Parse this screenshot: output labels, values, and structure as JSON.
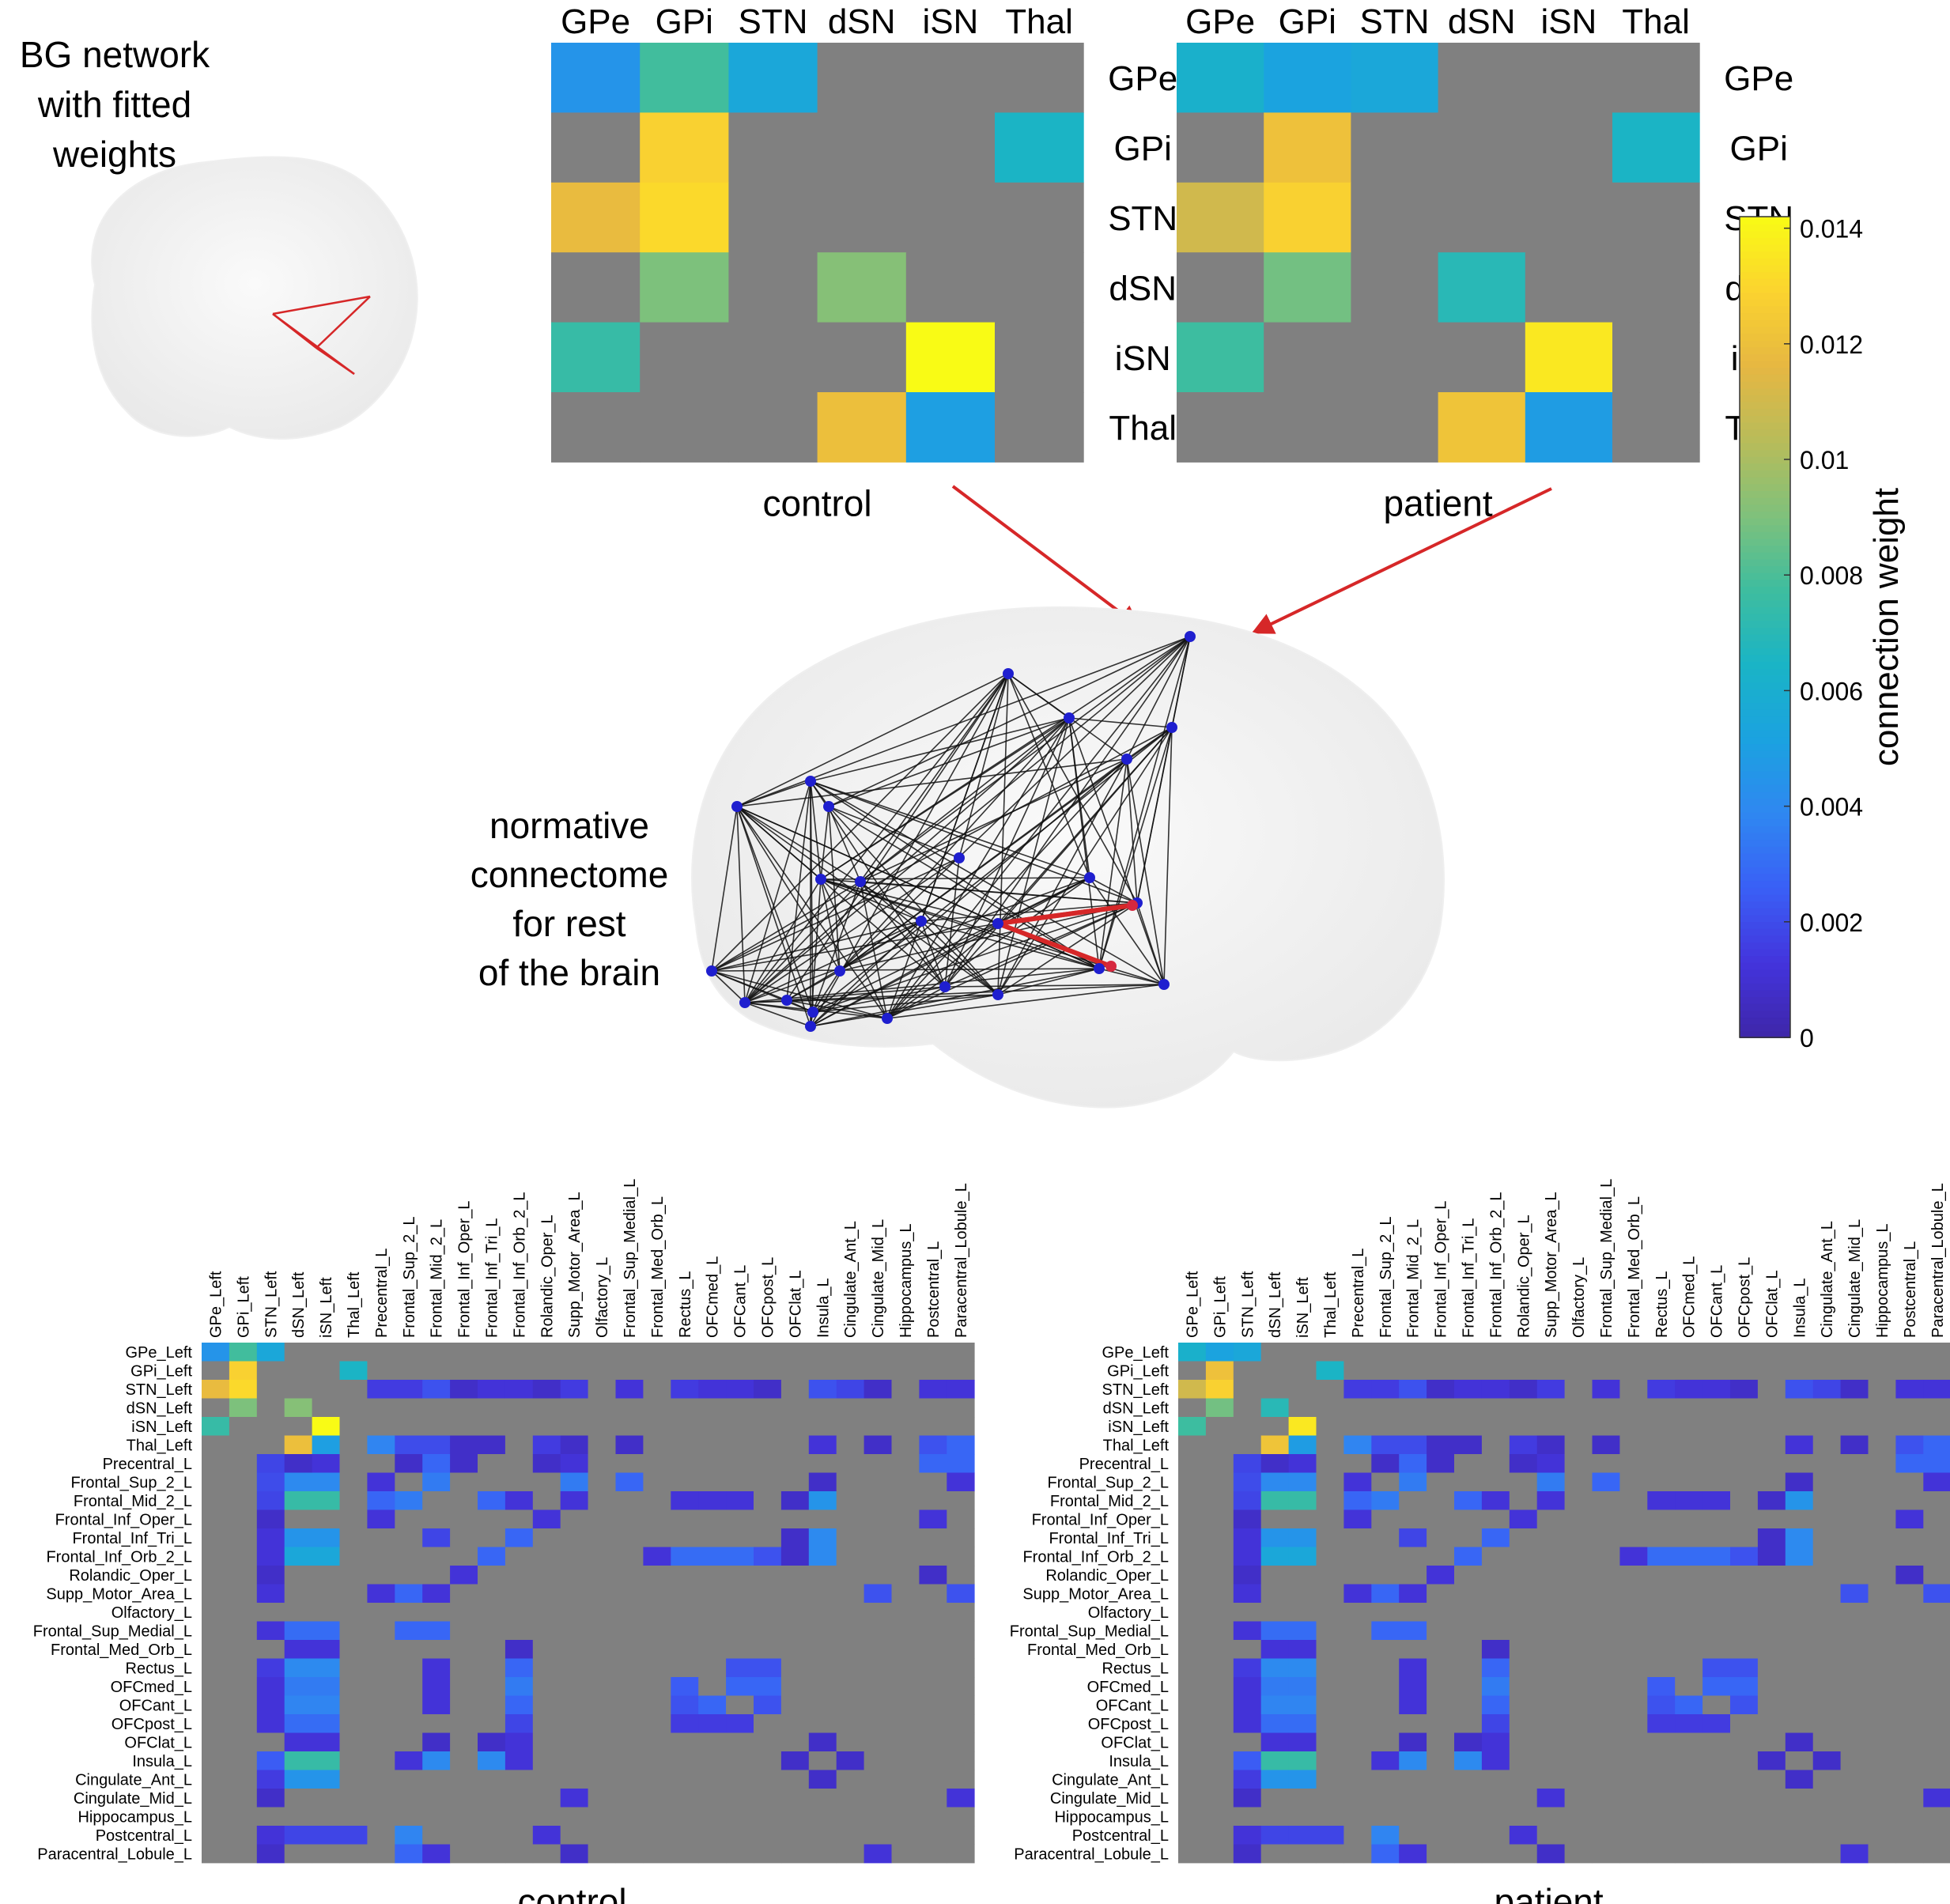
{
  "figure": {
    "bg_caption": "BG network\nwith fitted\nweights",
    "connectome_caption": "normative\nconnectome\nfor rest\nof the brain"
  },
  "colors": {
    "zero_cell": "#808080",
    "background": "#ffffff",
    "bg_network_line": "#d62728",
    "arrow": "#d62728",
    "node": "#1f1fcf",
    "bg_node": "#d6283e",
    "edge": "#111111",
    "colormap": [
      "#3e26a8",
      "#4334dc",
      "#3a5ff6",
      "#2f87f1",
      "#1ba2e0",
      "#1ab4c6",
      "#3ebd9f",
      "#7fc17b",
      "#b8bc5a",
      "#e6b742",
      "#fbd32f",
      "#f9fb15"
    ]
  },
  "colorbar": {
    "label": "connection weight",
    "min": 0,
    "max": 0.0142,
    "ticks": [
      0,
      0.002,
      0.004,
      0.006,
      0.008,
      0.01,
      0.012,
      0.014
    ],
    "tick_labels": [
      "0",
      "0.002",
      "0.004",
      "0.006",
      "0.008",
      "0.01",
      "0.012",
      "0.014"
    ]
  },
  "chart_data": [
    {
      "type": "heatmap",
      "title": "control",
      "xlabel": "control",
      "rows": [
        "GPe",
        "GPi",
        "STN",
        "dSN",
        "iSN",
        "Thal"
      ],
      "cols": [
        "GPe",
        "GPi",
        "STN",
        "dSN",
        "iSN",
        "Thal"
      ],
      "values": [
        [
          0.0045,
          0.0078,
          0.0055,
          0,
          0,
          0
        ],
        [
          0,
          0.0128,
          0,
          0,
          0,
          0.0065
        ],
        [
          0.0118,
          0.0131,
          0,
          0,
          0,
          0
        ],
        [
          0,
          0.009,
          0,
          0.0092,
          0,
          0
        ],
        [
          0.0075,
          0,
          0,
          0,
          0.0142,
          0
        ],
        [
          0,
          0,
          0,
          0.012,
          0.005,
          0
        ]
      ]
    },
    {
      "type": "heatmap",
      "title": "patient",
      "xlabel": "patient",
      "rows": [
        "GPe",
        "GPi",
        "STN",
        "dSN",
        "iSN",
        "Thal"
      ],
      "cols": [
        "GPe",
        "GPi",
        "STN",
        "dSN",
        "iSN",
        "Thal"
      ],
      "values": [
        [
          0.0062,
          0.0052,
          0.0055,
          0,
          0,
          0
        ],
        [
          0,
          0.0121,
          0,
          0,
          0,
          0.0065
        ],
        [
          0.011,
          0.0128,
          0,
          0,
          0,
          0
        ],
        [
          0,
          0.0088,
          0,
          0.007,
          0,
          0
        ],
        [
          0.0077,
          0,
          0,
          0,
          0.0136,
          0
        ],
        [
          0,
          0,
          0,
          0.0122,
          0.0049,
          0
        ]
      ]
    },
    {
      "type": "heatmap",
      "title": "control",
      "xlabel": "control",
      "labels": [
        "GPe_Left",
        "GPi_Left",
        "STN_Left",
        "dSN_Left",
        "iSN_Left",
        "Thal_Left",
        "Precentral_L",
        "Frontal_Sup_2_L",
        "Frontal_Mid_2_L",
        "Frontal_Inf_Oper_L",
        "Frontal_Inf_Tri_L",
        "Frontal_Inf_Orb_2_L",
        "Rolandic_Oper_L",
        "Supp_Motor_Area_L",
        "Olfactory_L",
        "Frontal_Sup_Medial_L",
        "Frontal_Med_Orb_L",
        "Rectus_L",
        "OFCmed_L",
        "OFCant_L",
        "OFCpost_L",
        "OFClat_L",
        "Insula_L",
        "Cingulate_Ant_L",
        "Cingulate_Mid_L",
        "Hippocampus_L",
        "Postcentral_L",
        "Paracentral_Lobule_L"
      ],
      "row_values": {
        "0": {
          "0": 0.0045,
          "1": 0.0078,
          "2": 0.0055
        },
        "1": {
          "1": 0.0128,
          "5": 0.0065
        },
        "2": {
          "0": 0.0118,
          "1": 0.0131,
          "6": 0.0015,
          "7": 0.0015,
          "8": 0.0022,
          "9": 0.0008,
          "10": 0.0012,
          "11": 0.0012,
          "12": 0.0008,
          "13": 0.0015,
          "15": 0.0012,
          "17": 0.0015,
          "18": 0.0012,
          "19": 0.0012,
          "20": 0.0008,
          "22": 0.0022,
          "23": 0.0018,
          "24": 0.0008,
          "26": 0.0012,
          "27": 0.0012
        },
        "3": {
          "1": 0.009,
          "3": 0.0092
        },
        "4": {
          "0": 0.0075,
          "4": 0.0142
        },
        "5": {
          "3": 0.012,
          "4": 0.005,
          "6": 0.0038,
          "7": 0.002,
          "8": 0.002,
          "9": 0.0008,
          "10": 0.0008,
          "12": 0.0015,
          "13": 0.0008,
          "15": 0.0008,
          "22": 0.0012,
          "24": 0.0008,
          "26": 0.0022,
          "27": 0.0028
        },
        "6": {
          "2": 0.0018,
          "3": 0.0008,
          "4": 0.0012,
          "7": 0.0008,
          "8": 0.0028,
          "9": 0.0008,
          "12": 0.0008,
          "13": 0.0012,
          "26": 0.0028,
          "27": 0.0028
        },
        "7": {
          "2": 0.002,
          "3": 0.004,
          "4": 0.004,
          "6": 0.0012,
          "8": 0.0035,
          "13": 0.0035,
          "15": 0.0028,
          "22": 0.0008,
          "27": 0.0012
        },
        "8": {
          "2": 0.0018,
          "3": 0.0075,
          "4": 0.0075,
          "6": 0.0028,
          "7": 0.0035,
          "10": 0.0028,
          "11": 0.0012,
          "13": 0.0012,
          "17": 0.0012,
          "18": 0.0012,
          "19": 0.0012,
          "21": 0.0008,
          "22": 0.0045
        },
        "9": {
          "2": 0.0008,
          "6": 0.0012,
          "12": 0.0012,
          "26": 0.0012
        },
        "10": {
          "2": 0.0012,
          "3": 0.0045,
          "4": 0.0045,
          "8": 0.0018,
          "11": 0.0028,
          "21": 0.0008,
          "22": 0.004
        },
        "11": {
          "2": 0.0012,
          "3": 0.0055,
          "4": 0.0055,
          "10": 0.0028,
          "16": 0.0012,
          "17": 0.003,
          "18": 0.003,
          "19": 0.003,
          "20": 0.0022,
          "21": 0.0008,
          "22": 0.004
        },
        "12": {
          "2": 0.0008,
          "9": 0.0012,
          "26": 0.0008
        },
        "13": {
          "2": 0.0012,
          "6": 0.0012,
          "7": 0.0028,
          "8": 0.0012,
          "24": 0.0022,
          "27": 0.0022
        },
        "15": {
          "2": 0.0012,
          "3": 0.003,
          "4": 0.003,
          "7": 0.0028,
          "8": 0.0028
        },
        "16": {
          "3": 0.0012,
          "4": 0.0012,
          "11": 0.0008
        },
        "17": {
          "2": 0.0015,
          "3": 0.004,
          "4": 0.004,
          "8": 0.0012,
          "11": 0.0028,
          "19": 0.0022,
          "20": 0.0022
        },
        "18": {
          "2": 0.0012,
          "3": 0.0035,
          "4": 0.0035,
          "8": 0.0012,
          "11": 0.0035,
          "17": 0.0025,
          "19": 0.0028,
          "20": 0.0028
        },
        "19": {
          "2": 0.0012,
          "3": 0.0038,
          "4": 0.0038,
          "8": 0.0012,
          "11": 0.0028,
          "17": 0.0022,
          "18": 0.0028,
          "20": 0.0022
        },
        "20": {
          "2": 0.0012,
          "3": 0.003,
          "4": 0.003,
          "11": 0.0018,
          "17": 0.0015,
          "18": 0.0015,
          "19": 0.0015
        },
        "21": {
          "3": 0.0012,
          "4": 0.0012,
          "8": 0.0008,
          "10": 0.0008,
          "11": 0.0012,
          "22": 0.0008
        },
        "22": {
          "2": 0.0025,
          "3": 0.0075,
          "4": 0.0075,
          "7": 0.0012,
          "8": 0.004,
          "10": 0.004,
          "11": 0.0012,
          "21": 0.0008,
          "23": 0.0008
        },
        "23": {
          "2": 0.0015,
          "3": 0.0045,
          "4": 0.0045,
          "22": 0.0008
        },
        "24": {
          "2": 0.0008,
          "13": 0.0012,
          "27": 0.0012
        },
        "26": {
          "2": 0.0012,
          "3": 0.0018,
          "4": 0.0018,
          "5": 0.0018,
          "7": 0.0038,
          "12": 0.0012
        },
        "27": {
          "2": 0.0008,
          "7": 0.0028,
          "8": 0.0012,
          "13": 0.0008,
          "24": 0.0012
        }
      }
    },
    {
      "type": "heatmap",
      "title": "patient",
      "xlabel": "patient",
      "labels": [
        "GPe_Left",
        "GPi_Left",
        "STN_Left",
        "dSN_Left",
        "iSN_Left",
        "Thal_Left",
        "Precentral_L",
        "Frontal_Sup_2_L",
        "Frontal_Mid_2_L",
        "Frontal_Inf_Oper_L",
        "Frontal_Inf_Tri_L",
        "Frontal_Inf_Orb_2_L",
        "Rolandic_Oper_L",
        "Supp_Motor_Area_L",
        "Olfactory_L",
        "Frontal_Sup_Medial_L",
        "Frontal_Med_Orb_L",
        "Rectus_L",
        "OFCmed_L",
        "OFCant_L",
        "OFCpost_L",
        "OFClat_L",
        "Insula_L",
        "Cingulate_Ant_L",
        "Cingulate_Mid_L",
        "Hippocampus_L",
        "Postcentral_L",
        "Paracentral_Lobule_L"
      ],
      "row_values": {
        "0": {
          "0": 0.0062,
          "1": 0.0052,
          "2": 0.0055
        },
        "1": {
          "1": 0.0121,
          "5": 0.0065
        },
        "2": {
          "0": 0.011,
          "1": 0.0128,
          "6": 0.0015,
          "7": 0.0015,
          "8": 0.0022,
          "9": 0.0008,
          "10": 0.0012,
          "11": 0.0012,
          "12": 0.0008,
          "13": 0.0015,
          "15": 0.0012,
          "17": 0.0015,
          "18": 0.0012,
          "19": 0.0012,
          "20": 0.0008,
          "22": 0.0022,
          "23": 0.0018,
          "24": 0.0008,
          "26": 0.0012,
          "27": 0.0012
        },
        "3": {
          "1": 0.0088,
          "3": 0.007
        },
        "4": {
          "0": 0.0077,
          "4": 0.0136
        },
        "5": {
          "3": 0.0122,
          "4": 0.0049,
          "6": 0.0038,
          "7": 0.002,
          "8": 0.002,
          "9": 0.0008,
          "10": 0.0008,
          "12": 0.0015,
          "13": 0.0008,
          "15": 0.0008,
          "22": 0.0012,
          "24": 0.0008,
          "26": 0.0022,
          "27": 0.0028
        },
        "6": {
          "2": 0.0018,
          "3": 0.0008,
          "4": 0.0012,
          "7": 0.0008,
          "8": 0.0028,
          "9": 0.0008,
          "12": 0.0008,
          "13": 0.0012,
          "26": 0.0028,
          "27": 0.0028
        },
        "7": {
          "2": 0.002,
          "3": 0.004,
          "4": 0.004,
          "6": 0.0012,
          "8": 0.0035,
          "13": 0.0035,
          "15": 0.0028,
          "22": 0.0008,
          "27": 0.0012
        },
        "8": {
          "2": 0.0018,
          "3": 0.0075,
          "4": 0.0075,
          "6": 0.0028,
          "7": 0.0035,
          "10": 0.0028,
          "11": 0.0012,
          "13": 0.0012,
          "17": 0.0012,
          "18": 0.0012,
          "19": 0.0012,
          "21": 0.0008,
          "22": 0.0045
        },
        "9": {
          "2": 0.0008,
          "6": 0.0012,
          "12": 0.0012,
          "26": 0.0012
        },
        "10": {
          "2": 0.0012,
          "3": 0.0045,
          "4": 0.0045,
          "8": 0.0018,
          "11": 0.0028,
          "21": 0.0008,
          "22": 0.004
        },
        "11": {
          "2": 0.0012,
          "3": 0.0055,
          "4": 0.0055,
          "10": 0.0028,
          "16": 0.0012,
          "17": 0.003,
          "18": 0.003,
          "19": 0.003,
          "20": 0.0022,
          "21": 0.0008,
          "22": 0.004
        },
        "12": {
          "2": 0.0008,
          "9": 0.0012,
          "26": 0.0008
        },
        "13": {
          "2": 0.0012,
          "6": 0.0012,
          "7": 0.0028,
          "8": 0.0012,
          "24": 0.0022,
          "27": 0.0022
        },
        "15": {
          "2": 0.0012,
          "3": 0.003,
          "4": 0.003,
          "7": 0.0028,
          "8": 0.0028
        },
        "16": {
          "3": 0.0012,
          "4": 0.0012,
          "11": 0.0008
        },
        "17": {
          "2": 0.0015,
          "3": 0.004,
          "4": 0.004,
          "8": 0.0012,
          "11": 0.0028,
          "19": 0.0022,
          "20": 0.0022
        },
        "18": {
          "2": 0.0012,
          "3": 0.0035,
          "4": 0.0035,
          "8": 0.0012,
          "11": 0.0035,
          "17": 0.0025,
          "19": 0.0028,
          "20": 0.0028
        },
        "19": {
          "2": 0.0012,
          "3": 0.0038,
          "4": 0.0038,
          "8": 0.0012,
          "11": 0.0028,
          "17": 0.0022,
          "18": 0.0028,
          "20": 0.0022
        },
        "20": {
          "2": 0.0012,
          "3": 0.003,
          "4": 0.003,
          "11": 0.0018,
          "17": 0.0015,
          "18": 0.0015,
          "19": 0.0015
        },
        "21": {
          "3": 0.0012,
          "4": 0.0012,
          "8": 0.0008,
          "10": 0.0008,
          "11": 0.0012,
          "22": 0.0008
        },
        "22": {
          "2": 0.0025,
          "3": 0.0075,
          "4": 0.0075,
          "7": 0.0012,
          "8": 0.004,
          "10": 0.004,
          "11": 0.0012,
          "21": 0.0008,
          "23": 0.0008
        },
        "23": {
          "2": 0.0015,
          "3": 0.0045,
          "4": 0.0045,
          "22": 0.0008
        },
        "24": {
          "2": 0.0008,
          "13": 0.0012,
          "27": 0.0012
        },
        "26": {
          "2": 0.0012,
          "3": 0.0018,
          "4": 0.0018,
          "5": 0.0018,
          "7": 0.0038,
          "12": 0.0012
        },
        "27": {
          "2": 0.0008,
          "7": 0.0028,
          "8": 0.0012,
          "13": 0.0008,
          "24": 0.0012
        }
      }
    }
  ]
}
